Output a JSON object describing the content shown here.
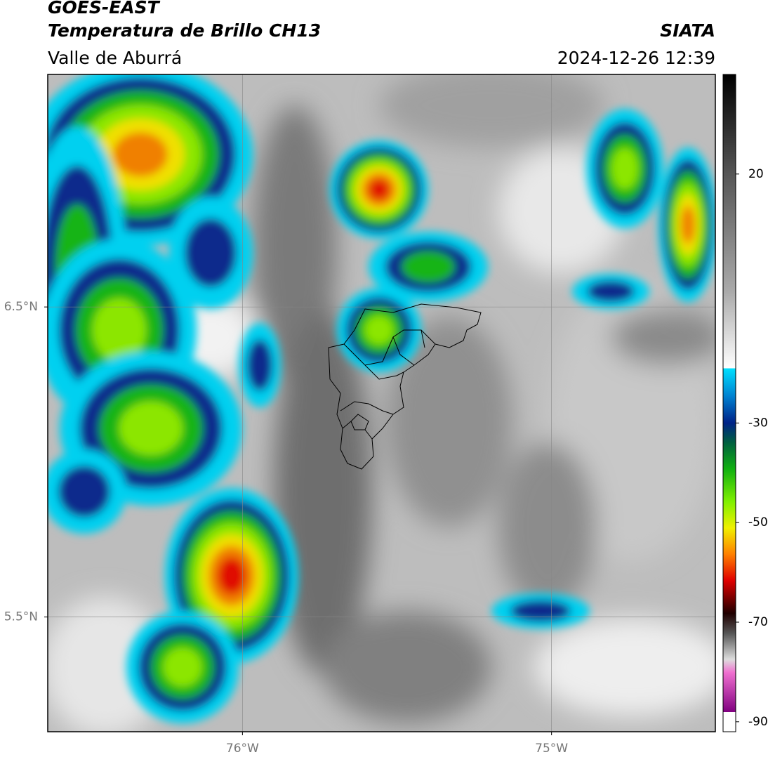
{
  "header": {
    "title": "GOES-EAST",
    "subtitle": "Temperatura de Brillo CH13",
    "region": "Valle de Aburrá",
    "source": "SIATA",
    "datetime": "2024-12-26 12:39"
  },
  "map": {
    "xlim": [
      -76.63,
      -74.47
    ],
    "ylim": [
      5.13,
      7.25
    ],
    "xticks": [
      {
        "value": -76,
        "label": "76°W"
      },
      {
        "value": -75,
        "label": "75°W"
      }
    ],
    "yticks": [
      {
        "value": 6.5,
        "label": "6.5°N"
      },
      {
        "value": 5.5,
        "label": "5.5°N"
      }
    ],
    "grid": true
  },
  "colorbar": {
    "clim": [
      -92,
      40
    ],
    "ticks": [
      20,
      -30,
      -50,
      -70,
      -90
    ]
  }
}
